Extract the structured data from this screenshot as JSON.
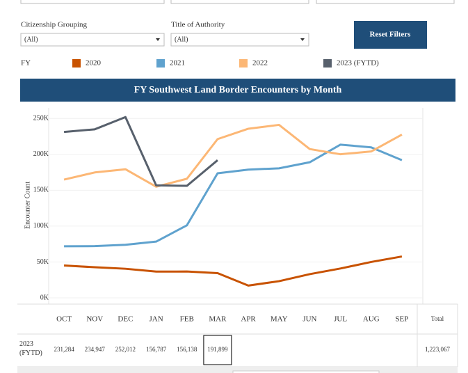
{
  "filters": [
    {
      "label": "Citizenship Grouping",
      "value": "(All)"
    },
    {
      "label": "Title of Authority",
      "value": "(All)"
    }
  ],
  "reset_button": "Reset Filters",
  "legend_title": "FY",
  "chart_data": {
    "type": "line",
    "title": "FY Southwest Land Border Encounters by Month",
    "y_label": "Encounter Count",
    "categories": [
      "OCT",
      "NOV",
      "DEC",
      "JAN",
      "FEB",
      "MAR",
      "APR",
      "MAY",
      "JUN",
      "JUL",
      "AUG",
      "SEP"
    ],
    "ylim": [
      0,
      260000
    ],
    "yticks": [
      {
        "value": 0,
        "label": "0K"
      },
      {
        "value": 50000,
        "label": "50K"
      },
      {
        "value": 100000,
        "label": "100K"
      },
      {
        "value": 150000,
        "label": "150K"
      },
      {
        "value": 200000,
        "label": "200K"
      },
      {
        "value": 250000,
        "label": "250K"
      }
    ],
    "grid": true,
    "series": [
      {
        "name": "2020",
        "color": "#c85200",
        "values": [
          45139,
          42643,
          40565,
          36585,
          36687,
          34460,
          17106,
          23237,
          33049,
          40929,
          50014,
          57674
        ]
      },
      {
        "name": "2021",
        "color": "#5fa2ce",
        "values": [
          71929,
          72113,
          73994,
          78414,
          101099,
          173686,
          178795,
          180597,
          189034,
          213593,
          209840,
          192001
        ]
      },
      {
        "name": "2022",
        "color": "#fcb775",
        "values": [
          164837,
          174845,
          179253,
          154874,
          166010,
          221303,
          235785,
          241136,
          207416,
          200162,
          204087,
          227547
        ]
      },
      {
        "name": "2023 (FYTD)",
        "color": "#57606c",
        "values": [
          231284,
          234947,
          252012,
          156787,
          156138,
          191899,
          null,
          null,
          null,
          null,
          null,
          null
        ],
        "value_labels": [
          "231,284",
          "234,947",
          "252,012",
          "156,787",
          "156,138",
          "191,899",
          null,
          null,
          null,
          null,
          null,
          null
        ]
      }
    ]
  },
  "table": {
    "total_header": "Total",
    "row_label": "2023 (FYTD)",
    "row_total": "1,223,067"
  }
}
